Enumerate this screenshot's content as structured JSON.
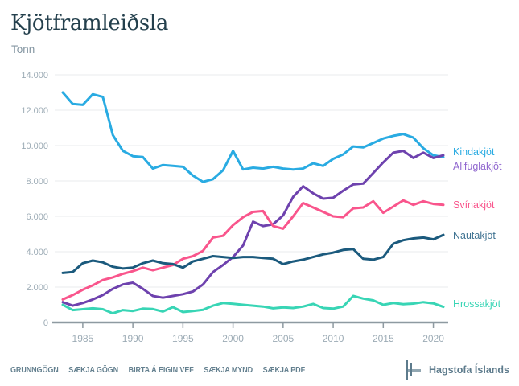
{
  "title": "Kjötframleiðsla",
  "unit_label": "Tonn",
  "colors": {
    "title": "#24404d",
    "unit": "#8496a2",
    "grid": "#e9ebec",
    "axis": "#8e9aa1",
    "tick_label": "#9cabb5",
    "footer": "#64808f"
  },
  "footer": {
    "links": [
      {
        "id": "grunngogn",
        "label": "GRUNNGÖGN"
      },
      {
        "id": "saekja-gogn",
        "label": "SÆKJA GÖGN"
      },
      {
        "id": "birta-a-eigin-vef",
        "label": "BIRTA Á EIGIN VEF"
      },
      {
        "id": "saekja-mynd",
        "label": "SÆKJA MYND"
      },
      {
        "id": "saekja-pdf",
        "label": "SÆKJA PDF"
      }
    ],
    "brand": "Hagstofa Íslands"
  },
  "chart_data": {
    "type": "line",
    "title": "Kjötframleiðsla",
    "ylabel": "Tonn",
    "xlabel": "",
    "ylim": [
      0,
      14000
    ],
    "ytick_step": 2000,
    "ytick_labels": [
      "0",
      "2.000",
      "4.000",
      "6.000",
      "8.000",
      "10.000",
      "12.000",
      "14.000"
    ],
    "xticks": [
      1985,
      1990,
      1995,
      2000,
      2005,
      2010,
      2015,
      2020
    ],
    "grid": "horizontal",
    "legend_position": "right-of-line-ends",
    "x": [
      1983,
      1984,
      1985,
      1986,
      1987,
      1988,
      1989,
      1990,
      1991,
      1992,
      1993,
      1994,
      1995,
      1996,
      1997,
      1998,
      1999,
      2000,
      2001,
      2002,
      2003,
      2004,
      2005,
      2006,
      2007,
      2008,
      2009,
      2010,
      2011,
      2012,
      2013,
      2014,
      2015,
      2016,
      2017,
      2018,
      2019,
      2020,
      2021
    ],
    "series": [
      {
        "id": "kindakjot",
        "name": "Kindakjöt",
        "color": "#29abe2",
        "label_color": "#29abe2",
        "label_y": 193,
        "values": [
          13000,
          12350,
          12300,
          12900,
          12750,
          10600,
          9700,
          9400,
          9350,
          8700,
          8900,
          8850,
          8800,
          8300,
          7950,
          8100,
          8600,
          9700,
          8650,
          8750,
          8700,
          8800,
          8700,
          8650,
          8700,
          9000,
          8850,
          9250,
          9500,
          9950,
          9900,
          10150,
          10400,
          10550,
          10650,
          10450,
          9850,
          9450,
          9350
        ]
      },
      {
        "id": "alifuglakjot",
        "name": "Alifuglakjöt",
        "color": "#6e42ae",
        "label_color": "#9168cf",
        "label_y": 211,
        "values": [
          1150,
          950,
          1100,
          1300,
          1550,
          1900,
          2150,
          2250,
          1900,
          1500,
          1400,
          1500,
          1600,
          1750,
          2150,
          2850,
          3250,
          3700,
          4350,
          5700,
          5450,
          5550,
          6050,
          7100,
          7700,
          7300,
          7000,
          7050,
          7450,
          7800,
          7850,
          8450,
          9050,
          9600,
          9700,
          9300,
          9600,
          9300,
          9450
        ]
      },
      {
        "id": "svinakjot",
        "name": "Svínakjöt",
        "color": "#f9558c",
        "label_color": "#f9558c",
        "label_y": 259,
        "values": [
          1300,
          1550,
          1850,
          2100,
          2400,
          2550,
          2750,
          2900,
          3100,
          2950,
          3100,
          3250,
          3600,
          3750,
          4050,
          4800,
          4900,
          5500,
          5950,
          6250,
          6300,
          5450,
          5300,
          6000,
          6750,
          6500,
          6250,
          6000,
          5950,
          6450,
          6500,
          6850,
          6200,
          6550,
          6900,
          6650,
          6850,
          6700,
          6650
        ]
      },
      {
        "id": "nautakjot",
        "name": "Nautakjöt",
        "color": "#1b5a7d",
        "label_color": "#3e7291",
        "label_y": 297,
        "values": [
          2800,
          2850,
          3350,
          3500,
          3400,
          3150,
          3050,
          3100,
          3350,
          3500,
          3350,
          3300,
          3100,
          3450,
          3600,
          3750,
          3700,
          3650,
          3700,
          3700,
          3650,
          3600,
          3300,
          3450,
          3550,
          3700,
          3850,
          3950,
          4100,
          4150,
          3600,
          3550,
          3700,
          4450,
          4650,
          4750,
          4800,
          4700,
          4950
        ]
      },
      {
        "id": "hrossakjot",
        "name": "Hrossakjöt",
        "color": "#38d5b5",
        "label_color": "#38d5b5",
        "label_y": 382,
        "values": [
          1000,
          700,
          750,
          800,
          750,
          520,
          700,
          650,
          780,
          760,
          620,
          870,
          590,
          650,
          720,
          950,
          1100,
          1060,
          1000,
          950,
          900,
          800,
          850,
          820,
          900,
          1050,
          820,
          780,
          900,
          1500,
          1350,
          1250,
          1000,
          1100,
          1030,
          1070,
          1150,
          1080,
          880
        ]
      }
    ]
  }
}
